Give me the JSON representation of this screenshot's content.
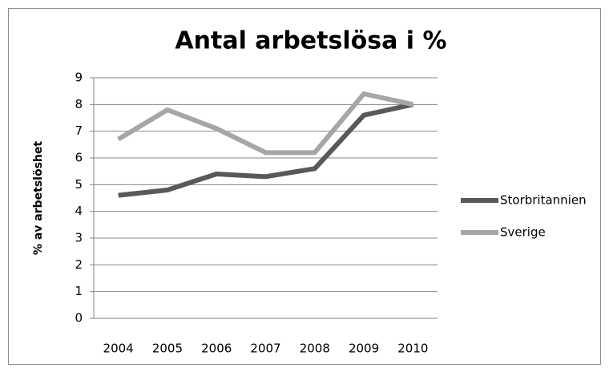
{
  "chart_data": {
    "type": "line",
    "title": "Antal arbetslösa i %",
    "y_label": "% av arbetslöshet",
    "categories": [
      "2004",
      "2005",
      "2006",
      "2007",
      "2008",
      "2009",
      "2010"
    ],
    "series": [
      {
        "name": "Storbritannien",
        "color": "#595959",
        "values": [
          4.6,
          4.8,
          5.4,
          5.3,
          5.6,
          7.6,
          8.0
        ]
      },
      {
        "name": "Sverige",
        "color": "#a6a6a6",
        "values": [
          6.7,
          7.8,
          7.1,
          6.2,
          6.2,
          8.4,
          8.0
        ]
      }
    ],
    "ylim": [
      0,
      9
    ],
    "yticks": [
      0,
      1,
      2,
      3,
      4,
      5,
      6,
      7,
      8,
      9
    ],
    "grid": true,
    "legend": "right"
  }
}
